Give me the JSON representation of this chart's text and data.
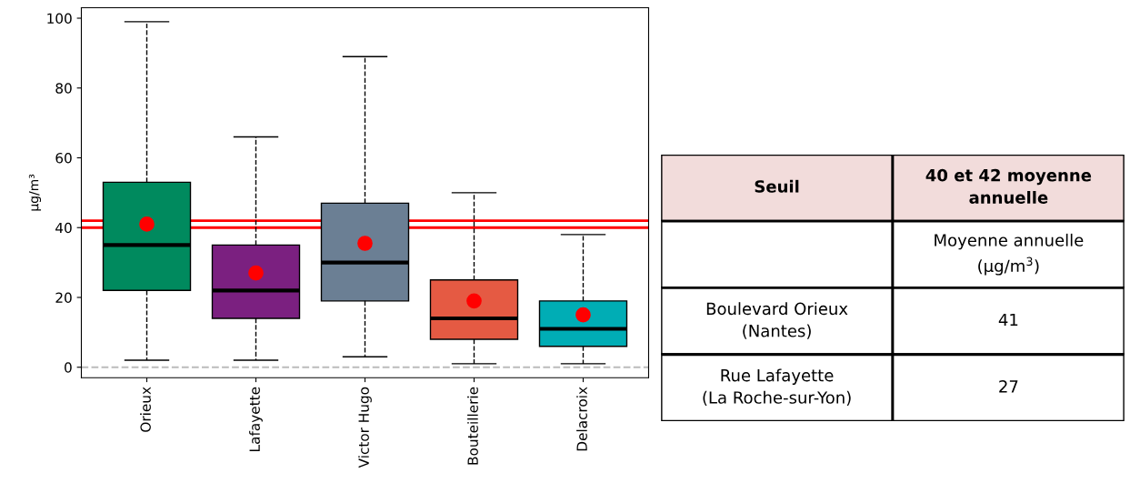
{
  "chart_data": [
    {
      "type": "box",
      "ylabel": "µg/m³",
      "categories": [
        "Orieux",
        "Lafayette",
        "Victor Hugo",
        "Bouteillerie",
        "Delacroix"
      ],
      "colors": [
        "#008a5e",
        "#7b2080",
        "#6b7f94",
        "#e55a43",
        "#00adb5"
      ],
      "boxes": [
        {
          "low": 2,
          "q1": 22,
          "median": 35,
          "q3": 53,
          "high": 99,
          "mean": 41
        },
        {
          "low": 2,
          "q1": 14,
          "median": 22,
          "q3": 35,
          "high": 66,
          "mean": 27
        },
        {
          "low": 3,
          "q1": 19,
          "median": 30,
          "q3": 47,
          "high": 89,
          "mean": 35.5
        },
        {
          "low": 1,
          "q1": 8,
          "median": 14,
          "q3": 25,
          "high": 50,
          "mean": 19
        },
        {
          "low": 1,
          "q1": 6,
          "median": 11,
          "q3": 19,
          "high": 38,
          "mean": 15
        }
      ],
      "ylim": [
        -3,
        103
      ],
      "yticks": [
        0,
        20,
        40,
        60,
        80,
        100
      ],
      "grid": false,
      "ref_lines": [
        {
          "axis": "y",
          "value": 40,
          "color": "#ff0000",
          "line_style": "solid"
        },
        {
          "axis": "y",
          "value": 42,
          "color": "#ff0000",
          "line_style": "solid"
        },
        {
          "axis": "y",
          "value": 0,
          "color": "#bbbbbb",
          "line_style": "dashed"
        }
      ]
    },
    {
      "type": "other",
      "color": "#f2dcdb",
      "cell_labels": [
        [
          "Seuil",
          "40 et 42 moyenne\nannuelle"
        ],
        [
          null,
          "Moyenne annuelle\n(µg/m$^{3}$)"
        ],
        [
          "Boulevard Orieux\n(Nantes)",
          "41"
        ],
        [
          "Rue Lafayette\n(La Roche-sur-Yon)",
          "27"
        ]
      ]
    }
  ]
}
